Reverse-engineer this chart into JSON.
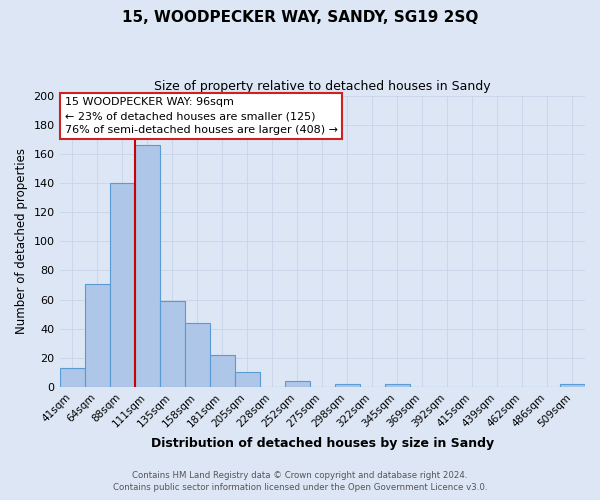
{
  "title": "15, WOODPECKER WAY, SANDY, SG19 2SQ",
  "subtitle": "Size of property relative to detached houses in Sandy",
  "xlabel": "Distribution of detached houses by size in Sandy",
  "ylabel": "Number of detached properties",
  "footer_line1": "Contains HM Land Registry data © Crown copyright and database right 2024.",
  "footer_line2": "Contains public sector information licensed under the Open Government Licence v3.0.",
  "bin_labels": [
    "41sqm",
    "64sqm",
    "88sqm",
    "111sqm",
    "135sqm",
    "158sqm",
    "181sqm",
    "205sqm",
    "228sqm",
    "252sqm",
    "275sqm",
    "298sqm",
    "322sqm",
    "345sqm",
    "369sqm",
    "392sqm",
    "415sqm",
    "439sqm",
    "462sqm",
    "486sqm",
    "509sqm"
  ],
  "bar_heights": [
    13,
    71,
    140,
    166,
    59,
    44,
    22,
    10,
    0,
    4,
    0,
    2,
    0,
    2,
    0,
    0,
    0,
    0,
    0,
    0,
    2
  ],
  "bar_color": "#aec6e8",
  "bar_edge_color": "#5b9bd5",
  "bar_width": 1.0,
  "vline_color": "#cc0000",
  "vline_x_value": 96,
  "ylim": [
    0,
    200
  ],
  "yticks": [
    0,
    20,
    40,
    60,
    80,
    100,
    120,
    140,
    160,
    180,
    200
  ],
  "annotation_line1": "15 WOODPECKER WAY: 96sqm",
  "annotation_line2": "← 23% of detached houses are smaller (125)",
  "annotation_line3": "76% of semi-detached houses are larger (408) →",
  "grid_color": "#c8d4e8",
  "background_color": "#dce6f5",
  "plot_bg_color": "#dce6f5",
  "ann_box_edge_color": "#cc2222",
  "ann_box_face_color": "#ffffff"
}
